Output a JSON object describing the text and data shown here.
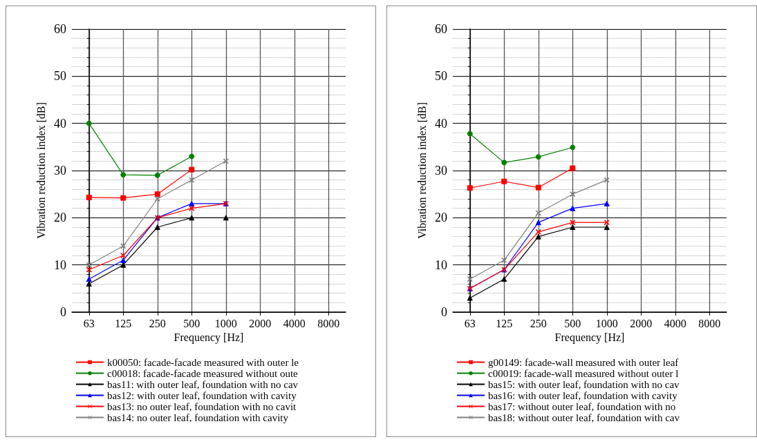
{
  "chart_data": [
    {
      "type": "line",
      "xlabel": "Frequency [Hz]",
      "ylabel": "Vibration reduction index [dB]",
      "categories": [
        "63",
        "125",
        "250",
        "500",
        "1000",
        "2000",
        "4000",
        "8000"
      ],
      "ylim": [
        0,
        60
      ],
      "yticks": [
        0,
        10,
        20,
        30,
        40,
        50,
        60
      ],
      "grid": true,
      "legend": "bottom",
      "series": [
        {
          "name": "k00050: facade-facade measured with outer le",
          "color": "#ff0000",
          "marker": "square",
          "values": [
            24.3,
            24.2,
            25,
            30.2,
            null,
            null,
            null,
            null
          ]
        },
        {
          "name": "c00018: facade-facade measured without oute",
          "color": "#008000",
          "marker": "circle",
          "values": [
            40,
            29.1,
            29,
            33,
            null,
            null,
            null,
            null
          ]
        },
        {
          "name": "bas11: with outer leaf, foundation with no cav",
          "color": "#000000",
          "marker": "triangle",
          "values": [
            6,
            10,
            18,
            20,
            20,
            null,
            null,
            null
          ]
        },
        {
          "name": "bas12: with outer leaf, foundation with cavity",
          "color": "#0000ff",
          "marker": "triangle",
          "values": [
            7,
            11,
            20,
            23,
            23,
            null,
            null,
            null
          ]
        },
        {
          "name": "bas13: no outer leaf, foundation with no cavit",
          "color": "#ff0000",
          "marker": "cross",
          "values": [
            9,
            12,
            20,
            22,
            23,
            null,
            null,
            null
          ]
        },
        {
          "name": "bas14: no outer leaf, foundation with cavity",
          "color": "#808080",
          "marker": "cross",
          "values": [
            10,
            14,
            24,
            28,
            32,
            null,
            null,
            null
          ]
        }
      ]
    },
    {
      "type": "line",
      "xlabel": "Frequency [Hz]",
      "ylabel": "Vibration reduction index [dB]",
      "categories": [
        "63",
        "125",
        "250",
        "500",
        "1000",
        "2000",
        "4000",
        "8000"
      ],
      "ylim": [
        0,
        60
      ],
      "yticks": [
        0,
        10,
        20,
        30,
        40,
        50,
        60
      ],
      "grid": true,
      "legend": "bottom",
      "series": [
        {
          "name": "g00149: facade-wall measured with outer leaf",
          "color": "#ff0000",
          "marker": "square",
          "values": [
            26.3,
            27.7,
            26.4,
            30.5,
            null,
            null,
            null,
            null
          ]
        },
        {
          "name": "c00019: facade-wall measured without outer l",
          "color": "#008000",
          "marker": "circle",
          "values": [
            37.8,
            31.7,
            32.9,
            34.9,
            null,
            null,
            null,
            null
          ]
        },
        {
          "name": "bas15: with outer leaf, foundation with no cav",
          "color": "#000000",
          "marker": "triangle",
          "values": [
            3,
            7,
            16,
            18,
            18,
            null,
            null,
            null
          ]
        },
        {
          "name": "bas16: with outer leaf, foundation with cavity",
          "color": "#0000ff",
          "marker": "triangle",
          "values": [
            5,
            9,
            19,
            22,
            23,
            null,
            null,
            null
          ]
        },
        {
          "name": "bas17: without outer leaf, foundation with no",
          "color": "#ff0000",
          "marker": "cross",
          "values": [
            5,
            9,
            17,
            19,
            19,
            null,
            null,
            null
          ]
        },
        {
          "name": "bas18: without outer leaf, foundation with cav",
          "color": "#808080",
          "marker": "cross",
          "values": [
            7,
            11,
            21,
            25,
            28,
            null,
            null,
            null
          ]
        }
      ]
    }
  ]
}
